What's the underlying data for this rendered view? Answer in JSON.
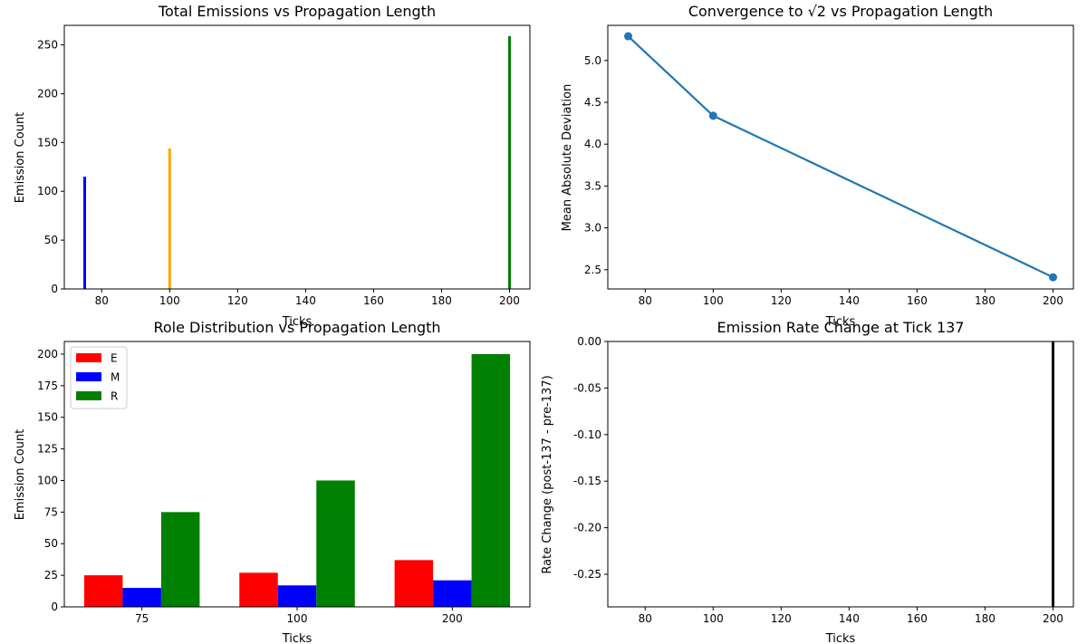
{
  "chart_data": [
    {
      "type": "bar",
      "title": "Total Emissions vs Propagation Length",
      "xlabel": "Ticks",
      "ylabel": "Emission Count",
      "xlim": [
        69,
        206
      ],
      "ylim": [
        0,
        270
      ],
      "xticks": [
        80,
        100,
        120,
        140,
        160,
        180,
        200
      ],
      "yticks": [
        0,
        50,
        100,
        150,
        200,
        250
      ],
      "x": [
        75,
        100,
        200
      ],
      "values": [
        115,
        144,
        259
      ],
      "colors": [
        "#0000ff",
        "#ffa500",
        "#008000"
      ]
    },
    {
      "type": "line",
      "title": "Convergence to √2 vs Propagation Length",
      "xlabel": "Ticks",
      "ylabel": "Mean Absolute Deviation",
      "xlim": [
        69,
        206
      ],
      "ylim": [
        2.27,
        5.42
      ],
      "xticks": [
        80,
        100,
        120,
        140,
        160,
        180,
        200
      ],
      "yticks": [
        "2.5",
        "3.0",
        "3.5",
        "4.0",
        "4.5",
        "5.0"
      ],
      "x": [
        75,
        100,
        200
      ],
      "y": [
        5.29,
        4.34,
        2.41
      ],
      "color": "#1f77b4"
    },
    {
      "type": "bar",
      "title": "Role Distribution vs Propagation Length",
      "xlabel": "Ticks",
      "ylabel": "Emission Count",
      "ylim": [
        0,
        210
      ],
      "categories": [
        "75",
        "100",
        "200"
      ],
      "yticks": [
        0,
        25,
        50,
        75,
        100,
        125,
        150,
        175,
        200
      ],
      "series": [
        {
          "name": "E",
          "values": [
            25,
            27,
            37
          ],
          "color": "#ff0000"
        },
        {
          "name": "M",
          "values": [
            15,
            17,
            21
          ],
          "color": "#0000ff"
        },
        {
          "name": "R",
          "values": [
            75,
            100,
            200
          ],
          "color": "#008000"
        }
      ],
      "legend": "upper left"
    },
    {
      "type": "bar",
      "title": "Emission Rate Change at Tick 137",
      "xlabel": "Ticks",
      "ylabel": "Rate Change (post-137 - pre-137)",
      "xlim": [
        69,
        206
      ],
      "ylim": [
        -0.285,
        0
      ],
      "xticks": [
        80,
        100,
        120,
        140,
        160,
        180,
        200
      ],
      "yticks": [
        "0.00",
        "-0.05",
        "-0.10",
        "-0.15",
        "-0.20",
        "-0.25"
      ],
      "x": [
        200
      ],
      "values": [
        -0.285
      ],
      "color": "#000000"
    }
  ]
}
